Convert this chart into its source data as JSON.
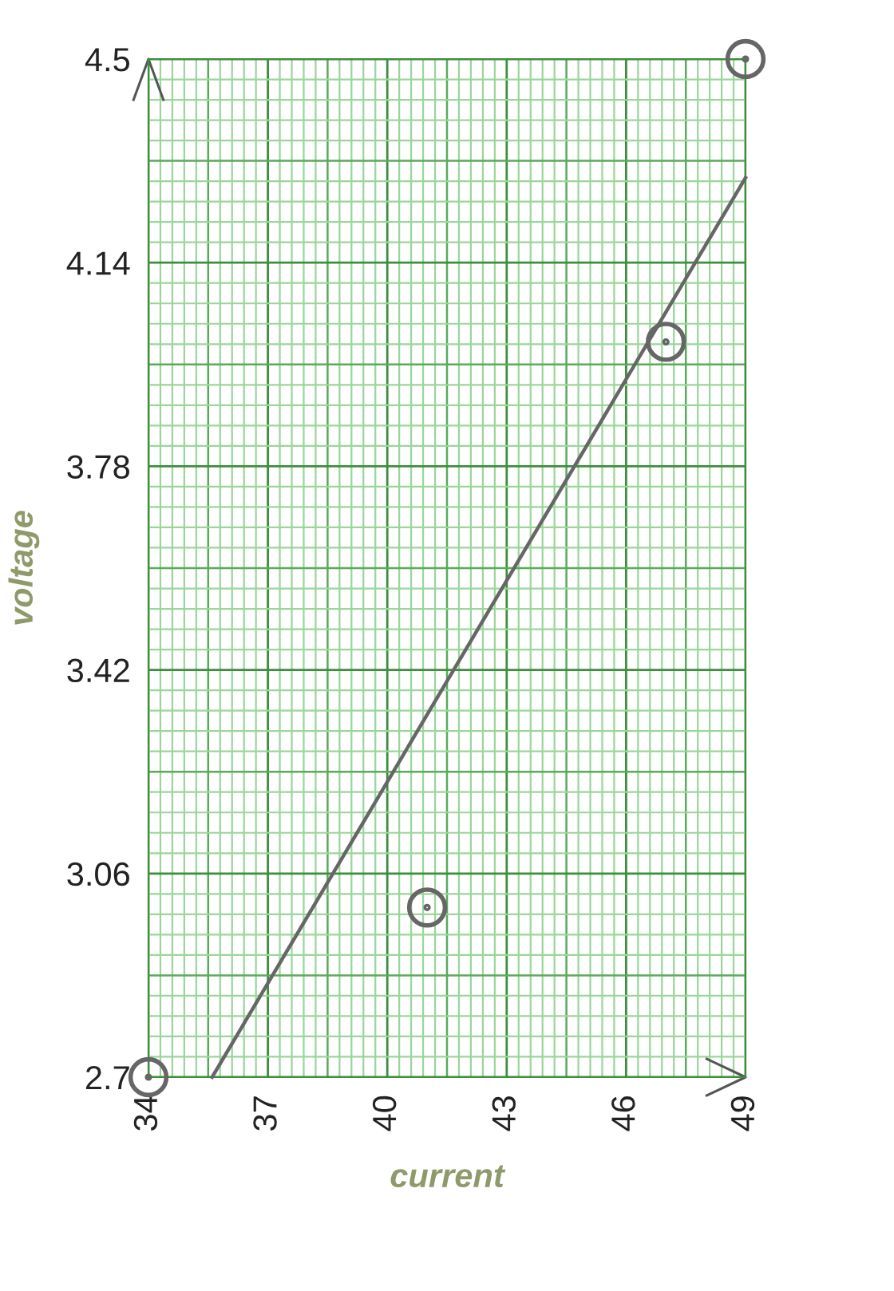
{
  "chart_data": {
    "type": "scatter",
    "xlabel": "current",
    "ylabel": "voltage",
    "x": [
      34,
      41,
      47,
      49
    ],
    "series": [
      {
        "color": "#666666",
        "marker": "circle",
        "values": [
          2.7,
          3.0,
          4.0,
          4.5
        ]
      },
      {
        "type": "line",
        "color": "#666666",
        "x": [
          35.6,
          49
        ],
        "values": [
          2.7,
          4.29
        ]
      }
    ],
    "xlim": [
      34,
      49
    ],
    "ylim": [
      2.7,
      4.5
    ],
    "xticks": [
      34,
      {
        "value": 34.3,
        "label": null
      },
      {
        "value": 34.6,
        "label": null
      },
      {
        "value": 34.9,
        "label": null
      },
      {
        "value": 35.2,
        "label": null
      },
      {
        "value": 35.5,
        "label": null
      },
      {
        "value": 35.8,
        "label": null
      },
      {
        "value": 36.1,
        "label": null
      },
      {
        "value": 36.4,
        "label": null
      },
      {
        "value": 36.7,
        "label": null
      },
      37,
      {
        "value": 37.3,
        "label": null
      },
      {
        "value": 37.6,
        "label": null
      },
      {
        "value": 37.9,
        "label": null
      },
      {
        "value": 38.2,
        "label": null
      },
      {
        "value": 38.5,
        "label": null
      },
      {
        "value": 38.8,
        "label": null
      },
      {
        "value": 39.1,
        "label": null
      },
      {
        "value": 39.4,
        "label": null
      },
      {
        "value": 39.7,
        "label": null
      },
      40,
      {
        "value": 40.3,
        "label": null
      },
      {
        "value": 40.6,
        "label": null
      },
      {
        "value": 40.9,
        "label": null
      },
      {
        "value": 41.2,
        "label": null
      },
      {
        "value": 41.5,
        "label": null
      },
      {
        "value": 41.8,
        "label": null
      },
      {
        "value": 42.1,
        "label": null
      },
      {
        "value": 42.4,
        "label": null
      },
      {
        "value": 42.7,
        "label": null
      },
      43,
      {
        "value": 43.3,
        "label": null
      },
      {
        "value": 43.6,
        "label": null
      },
      {
        "value": 43.9,
        "label": null
      },
      {
        "value": 44.2,
        "label": null
      },
      {
        "value": 44.5,
        "label": null
      },
      {
        "value": 44.8,
        "label": null
      },
      {
        "value": 45.1,
        "label": null
      },
      {
        "value": 45.4,
        "label": null
      },
      {
        "value": 45.7,
        "label": null
      },
      46,
      {
        "value": 46.3,
        "label": null
      },
      {
        "value": 46.6,
        "label": null
      },
      {
        "value": 46.9,
        "label": null
      },
      {
        "value": 47.2,
        "label": null
      },
      {
        "value": 47.5,
        "label": null
      },
      {
        "value": 47.8,
        "label": null
      },
      {
        "value": 48.1,
        "label": null
      },
      {
        "value": 48.4,
        "label": null
      },
      {
        "value": 48.7,
        "label": null
      },
      49
    ],
    "yticks": [
      2.7,
      {
        "value": 2.736,
        "label": null
      },
      {
        "value": 2.772,
        "label": null
      },
      {
        "value": 2.808,
        "label": null
      },
      {
        "value": 2.844,
        "label": null
      },
      {
        "value": 2.88,
        "label": null
      },
      {
        "value": 2.916,
        "label": null
      },
      {
        "value": 2.952,
        "label": null
      },
      {
        "value": 2.988,
        "label": null
      },
      {
        "value": 3.024,
        "label": null
      },
      3.06,
      {
        "value": 3.096,
        "label": null
      },
      {
        "value": 3.132,
        "label": null
      },
      {
        "value": 3.168,
        "label": null
      },
      {
        "value": 3.204,
        "label": null
      },
      {
        "value": 3.24,
        "label": null
      },
      {
        "value": 3.276,
        "label": null
      },
      {
        "value": 3.312,
        "label": null
      },
      {
        "value": 3.348,
        "label": null
      },
      {
        "value": 3.384,
        "label": null
      },
      3.42,
      {
        "value": 3.456,
        "label": null
      },
      {
        "value": 3.492,
        "label": null
      },
      {
        "value": 3.528,
        "label": null
      },
      {
        "value": 3.564,
        "label": null
      },
      {
        "value": 3.6,
        "label": null
      },
      {
        "value": 3.636,
        "label": null
      },
      {
        "value": 3.672,
        "label": null
      },
      {
        "value": 3.708,
        "label": null
      },
      {
        "value": 3.744,
        "label": null
      },
      3.78,
      {
        "value": 3.816,
        "label": null
      },
      {
        "value": 3.852,
        "label": null
      },
      {
        "value": 3.888,
        "label": null
      },
      {
        "value": 3.924,
        "label": null
      },
      {
        "value": 3.96,
        "label": null
      },
      {
        "value": 3.996,
        "label": null
      },
      {
        "value": 4.032,
        "label": null
      },
      {
        "value": 4.068,
        "label": null
      },
      {
        "value": 4.104,
        "label": null
      },
      4.14,
      {
        "value": 4.176,
        "label": null
      },
      {
        "value": 4.212,
        "label": null
      },
      {
        "value": 4.248,
        "label": null
      },
      {
        "value": 4.284,
        "label": null
      },
      {
        "value": 4.32,
        "label": null
      },
      {
        "value": 4.356,
        "label": null
      },
      {
        "value": 4.392,
        "label": null
      },
      {
        "value": 4.428,
        "label": null
      },
      {
        "value": 4.464,
        "label": null
      },
      4.5
    ],
    "grid": true,
    "legend": false
  }
}
